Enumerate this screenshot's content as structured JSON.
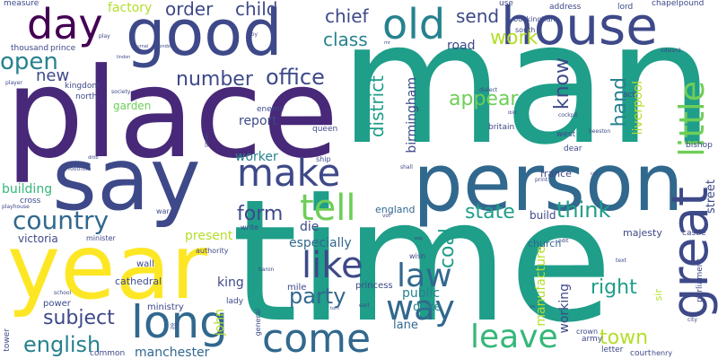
{
  "words": {
    "man": "man",
    "time": "time",
    "place": "place",
    "person": "person",
    "say": "say",
    "year": "year",
    "good": "good",
    "house": "house",
    "old": "old",
    "day": "day",
    "great": "great",
    "make": "make",
    "long": "long",
    "come": "come",
    "country": "country",
    "little": "little",
    "leave": "leave",
    "way": "way",
    "like": "like",
    "tell": "tell",
    "law": "law",
    "open": "open",
    "work": "work",
    "office": "office",
    "party": "party",
    "number": "number",
    "english": "english",
    "subject": "subject",
    "order": "order",
    "child": "child",
    "chief": "chief",
    "class": "class",
    "send": "send",
    "appear": "appear",
    "know": "know",
    "hand": "hand",
    "think": "think",
    "state": "state",
    "form": "form",
    "right": "right",
    "town": "town",
    "coal": "coal",
    "district": "district",
    "especially": "especially",
    "manchester": "manchester",
    "new": "new",
    "report": "report",
    "build": "build",
    "die": "die",
    "factory": "factory",
    "road": "road",
    "building": "building",
    "worker": "worker",
    "present": "present",
    "liverpool": "liverpool",
    "birmingham": "birmingham",
    "manufacture": "manufacture",
    "public": "public",
    "working": "working",
    "john": "john",
    "king": "king",
    "duke": "duke",
    "lane": "lane",
    "street": "street",
    "garden": "garden",
    "victoria": "victoria",
    "england": "england",
    "france": "france",
    "church": "church",
    "cathedral": "cathedral",
    "majesty": "majesty",
    "wall": "wall",
    "ministry": "ministry",
    "power": "power",
    "sir": "sir",
    "princess": "princess",
    "mile": "mile",
    "lady": "lady",
    "army": "army",
    "tower": "tower",
    "common": "common",
    "court": "court",
    "letter": "letter",
    "parliament": "parliament",
    "castle": "castle",
    "bishop": "bishop",
    "chapel": "chapel",
    "pound": "pound",
    "lord": "lord",
    "address": "address",
    "use": "use",
    "buckingham": "buckingham",
    "south": "south",
    "prince": "prince",
    "thousand": "thousand",
    "measure": "measure",
    "kingdom": "kingdom",
    "north": "north",
    "enemy": "enemy",
    "queen": "queen",
    "britain": "britain",
    "west": "west",
    "act": "act",
    "dear": "dear",
    "ship": "ship",
    "cross": "cross",
    "war": "war",
    "write": "write",
    "authority": "authority",
    "minister": "minister",
    "wish": "wish",
    "general": "general",
    "crown": "crown",
    "henry": "henry",
    "edward": "edward",
    "player": "player",
    "society": "society",
    "footnote": "footnote",
    "school": "school",
    "spain": "spain",
    "dialect": "dialect",
    "vol": "vol",
    "print": "print",
    "shall": "shall",
    "earl": "earl",
    "edit": "edit",
    "cockpit": "cockpit",
    "playhouse": "playhouse",
    "baron": "baron",
    "boy": "boy",
    "play": "play",
    "lindon": "lindon",
    "journal": "journal",
    "text": "text",
    "beeston": "beeston",
    "city": "city",
    "london": "london",
    "esq": "esq",
    "ibid": "ibid",
    "mr": "mr",
    "ditto": "ditto",
    "god": "god",
    "ye": "ye",
    "nor": "nor",
    "tom": "tom",
    "col": "col"
  }
}
